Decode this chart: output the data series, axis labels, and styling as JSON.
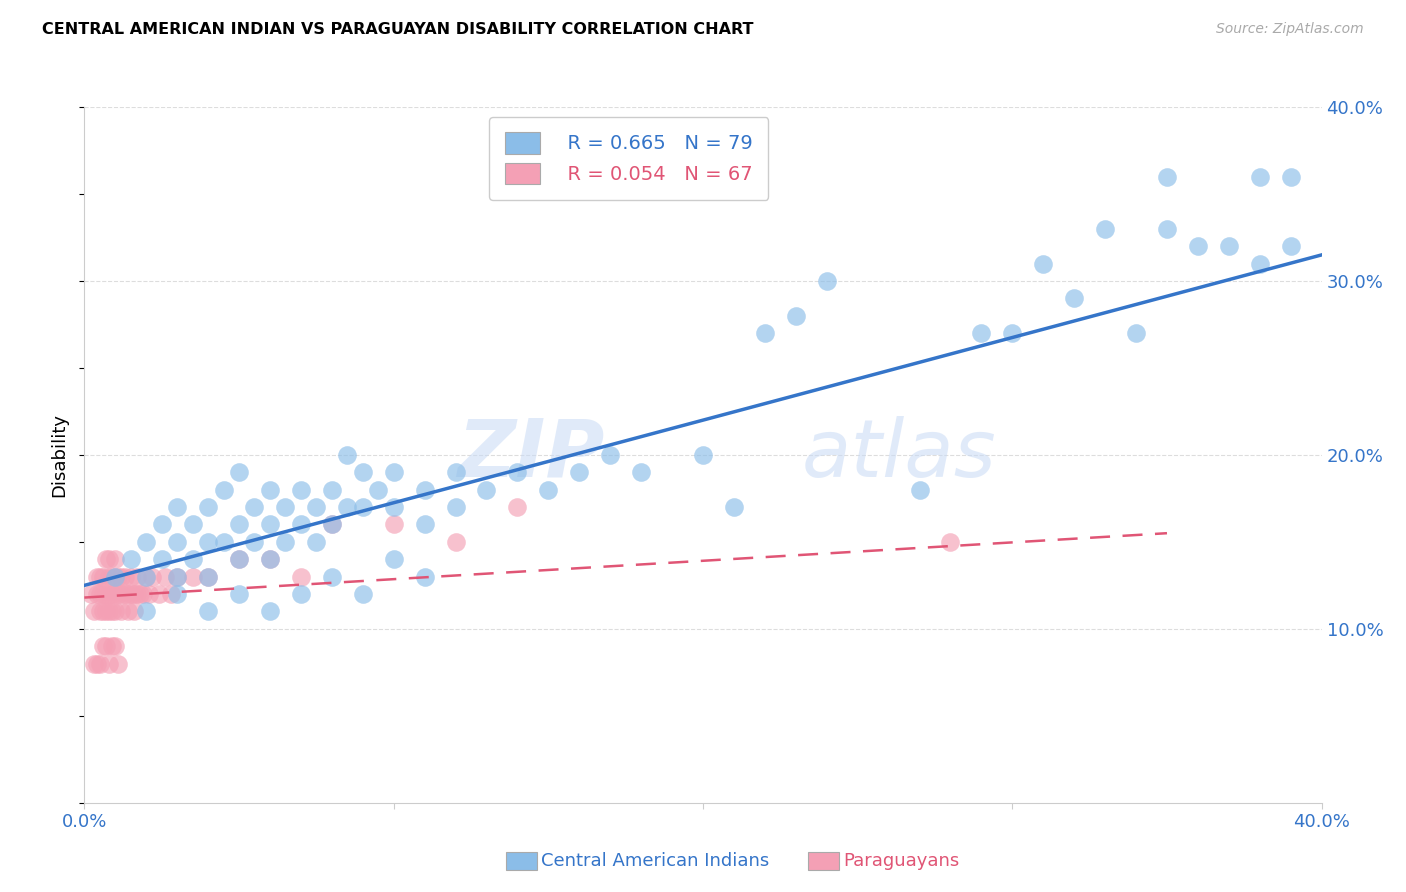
{
  "title": "CENTRAL AMERICAN INDIAN VS PARAGUAYAN DISABILITY CORRELATION CHART",
  "source": "Source: ZipAtlas.com",
  "ylabel": "Disability",
  "xlim": [
    0.0,
    0.4
  ],
  "ylim": [
    0.0,
    0.4
  ],
  "yticks": [
    0.1,
    0.2,
    0.3,
    0.4
  ],
  "ytick_labels": [
    "10.0%",
    "20.0%",
    "30.0%",
    "40.0%"
  ],
  "legend_r1": "R = 0.665",
  "legend_n1": "N = 79",
  "legend_r2": "R = 0.054",
  "legend_n2": "N = 67",
  "blue_color": "#8bbde8",
  "blue_line_color": "#3575c9",
  "pink_color": "#f4a0b5",
  "pink_line_color": "#e05575",
  "watermark_zip": "ZIP",
  "watermark_atlas": "atlas",
  "axis_label_color": "#3575c9",
  "blue_scatter_x": [
    0.01,
    0.015,
    0.02,
    0.02,
    0.025,
    0.025,
    0.03,
    0.03,
    0.03,
    0.035,
    0.035,
    0.04,
    0.04,
    0.04,
    0.045,
    0.045,
    0.05,
    0.05,
    0.05,
    0.055,
    0.055,
    0.06,
    0.06,
    0.06,
    0.065,
    0.065,
    0.07,
    0.07,
    0.075,
    0.075,
    0.08,
    0.08,
    0.085,
    0.085,
    0.09,
    0.09,
    0.095,
    0.1,
    0.1,
    0.11,
    0.11,
    0.12,
    0.12,
    0.13,
    0.14,
    0.15,
    0.16,
    0.17,
    0.18,
    0.2,
    0.21,
    0.22,
    0.23,
    0.24,
    0.27,
    0.29,
    0.3,
    0.31,
    0.32,
    0.33,
    0.34,
    0.35,
    0.35,
    0.36,
    0.37,
    0.38,
    0.38,
    0.39,
    0.39,
    0.02,
    0.03,
    0.04,
    0.05,
    0.06,
    0.07,
    0.08,
    0.09,
    0.1,
    0.11
  ],
  "blue_scatter_y": [
    0.13,
    0.14,
    0.13,
    0.15,
    0.14,
    0.16,
    0.13,
    0.15,
    0.17,
    0.14,
    0.16,
    0.13,
    0.15,
    0.17,
    0.15,
    0.18,
    0.14,
    0.16,
    0.19,
    0.15,
    0.17,
    0.14,
    0.16,
    0.18,
    0.15,
    0.17,
    0.16,
    0.18,
    0.15,
    0.17,
    0.16,
    0.18,
    0.17,
    0.2,
    0.17,
    0.19,
    0.18,
    0.17,
    0.19,
    0.16,
    0.18,
    0.17,
    0.19,
    0.18,
    0.19,
    0.18,
    0.19,
    0.2,
    0.19,
    0.2,
    0.17,
    0.27,
    0.28,
    0.3,
    0.18,
    0.27,
    0.27,
    0.31,
    0.29,
    0.33,
    0.27,
    0.36,
    0.33,
    0.32,
    0.32,
    0.31,
    0.36,
    0.32,
    0.36,
    0.11,
    0.12,
    0.11,
    0.12,
    0.11,
    0.12,
    0.13,
    0.12,
    0.14,
    0.13
  ],
  "pink_scatter_x": [
    0.002,
    0.003,
    0.004,
    0.004,
    0.005,
    0.005,
    0.005,
    0.006,
    0.006,
    0.006,
    0.007,
    0.007,
    0.007,
    0.008,
    0.008,
    0.008,
    0.008,
    0.009,
    0.009,
    0.009,
    0.01,
    0.01,
    0.01,
    0.01,
    0.011,
    0.011,
    0.012,
    0.012,
    0.012,
    0.013,
    0.013,
    0.014,
    0.014,
    0.015,
    0.015,
    0.016,
    0.016,
    0.017,
    0.017,
    0.018,
    0.019,
    0.02,
    0.021,
    0.022,
    0.024,
    0.026,
    0.028,
    0.03,
    0.035,
    0.04,
    0.05,
    0.06,
    0.07,
    0.08,
    0.1,
    0.12,
    0.14,
    0.28,
    0.003,
    0.004,
    0.005,
    0.006,
    0.007,
    0.008,
    0.009,
    0.01,
    0.011
  ],
  "pink_scatter_y": [
    0.12,
    0.11,
    0.12,
    0.13,
    0.11,
    0.12,
    0.13,
    0.11,
    0.12,
    0.13,
    0.11,
    0.12,
    0.14,
    0.11,
    0.12,
    0.13,
    0.14,
    0.11,
    0.12,
    0.13,
    0.11,
    0.12,
    0.13,
    0.14,
    0.12,
    0.13,
    0.11,
    0.12,
    0.13,
    0.12,
    0.13,
    0.11,
    0.12,
    0.12,
    0.13,
    0.11,
    0.12,
    0.12,
    0.13,
    0.12,
    0.12,
    0.13,
    0.12,
    0.13,
    0.12,
    0.13,
    0.12,
    0.13,
    0.13,
    0.13,
    0.14,
    0.14,
    0.13,
    0.16,
    0.16,
    0.15,
    0.17,
    0.15,
    0.08,
    0.08,
    0.08,
    0.09,
    0.09,
    0.08,
    0.09,
    0.09,
    0.08
  ],
  "blue_trend_x": [
    0.0,
    0.4
  ],
  "blue_trend_y": [
    0.125,
    0.315
  ],
  "pink_trend_x": [
    0.0,
    0.35
  ],
  "pink_trend_y": [
    0.118,
    0.155
  ],
  "grid_color": "#dddddd",
  "background_color": "#ffffff"
}
